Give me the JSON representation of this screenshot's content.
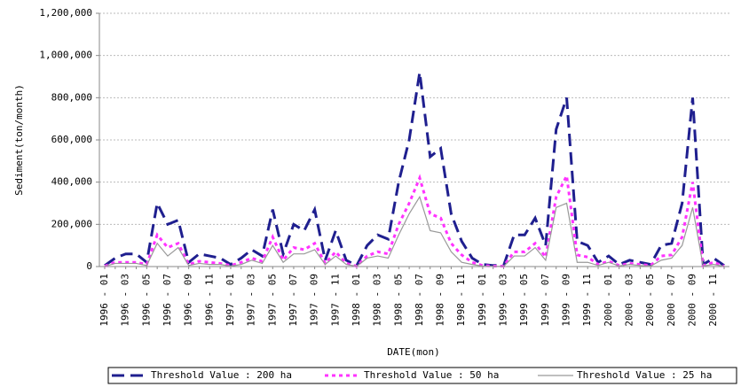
{
  "chart_data": {
    "type": "line",
    "y_label": "Sediment(ton/month)",
    "x_label": "DATE(mon)",
    "categories": [
      "1996 - 01",
      null,
      "1996 - 03",
      null,
      "1996 - 05",
      null,
      "1996 - 07",
      null,
      "1996 - 09",
      null,
      "1996 - 11",
      null,
      "1997 - 01",
      null,
      "1997 - 03",
      null,
      "1997 - 05",
      null,
      "1997 - 07",
      null,
      "1997 - 09",
      null,
      "1997 - 11",
      null,
      "1998 - 01",
      null,
      "1998 - 03",
      null,
      "1998 - 05",
      null,
      "1998 - 07",
      null,
      "1998 - 09",
      null,
      "1998 - 11",
      null,
      "1999 - 01",
      null,
      "1999 - 03",
      null,
      "1999 - 05",
      null,
      "1999 - 07",
      null,
      "1999 - 09",
      null,
      "1999 - 11",
      null,
      "2000 - 01",
      null,
      "2000 - 03",
      null,
      "2000 - 05",
      null,
      "2000 - 07",
      null,
      "2000 - 09",
      null,
      "2000 - 11",
      null
    ],
    "series": [
      {
        "name": "Threshold Value : 200 ha",
        "color": "#1f1f8f",
        "style": "dashed",
        "values": [
          5000,
          40000,
          60000,
          60000,
          20000,
          300000,
          200000,
          220000,
          20000,
          60000,
          50000,
          40000,
          10000,
          40000,
          80000,
          50000,
          270000,
          60000,
          200000,
          170000,
          270000,
          30000,
          170000,
          30000,
          5000,
          100000,
          150000,
          130000,
          400000,
          600000,
          920000,
          520000,
          560000,
          250000,
          120000,
          40000,
          10000,
          5000,
          5000,
          150000,
          150000,
          230000,
          100000,
          650000,
          800000,
          120000,
          100000,
          20000,
          50000,
          10000,
          30000,
          20000,
          10000,
          100000,
          110000,
          300000,
          800000,
          10000,
          40000,
          5000
        ]
      },
      {
        "name": "Threshold Value : 50 ha",
        "color": "#ff33ff",
        "style": "dotted",
        "values": [
          2000,
          20000,
          20000,
          20000,
          10000,
          150000,
          90000,
          110000,
          10000,
          25000,
          20000,
          15000,
          5000,
          20000,
          40000,
          25000,
          140000,
          30000,
          90000,
          80000,
          110000,
          15000,
          70000,
          15000,
          2000,
          50000,
          70000,
          60000,
          200000,
          300000,
          420000,
          250000,
          230000,
          110000,
          55000,
          20000,
          5000,
          2000,
          2000,
          70000,
          70000,
          110000,
          45000,
          330000,
          430000,
          55000,
          45000,
          10000,
          25000,
          5000,
          15000,
          10000,
          5000,
          50000,
          55000,
          140000,
          400000,
          5000,
          20000,
          2000
        ]
      },
      {
        "name": "Threshold Value : 25 ha",
        "color": "#999999",
        "style": "solid",
        "values": [
          1000,
          15000,
          15000,
          15000,
          5000,
          110000,
          50000,
          90000,
          5000,
          15000,
          10000,
          10000,
          2000,
          10000,
          30000,
          15000,
          100000,
          20000,
          60000,
          60000,
          80000,
          10000,
          50000,
          10000,
          1000,
          40000,
          50000,
          40000,
          150000,
          250000,
          330000,
          170000,
          160000,
          70000,
          20000,
          10000,
          2000,
          1000,
          1000,
          50000,
          50000,
          90000,
          30000,
          280000,
          300000,
          20000,
          20000,
          5000,
          20000,
          3000,
          10000,
          5000,
          2000,
          30000,
          40000,
          100000,
          280000,
          3000,
          10000,
          1000
        ]
      }
    ],
    "ylim": [
      0,
      1200000
    ],
    "yticks": [
      0,
      {
        "value": 200000,
        "label": "200,000"
      },
      {
        "value": 400000,
        "label": "400,000"
      },
      {
        "value": 600000,
        "label": "600,000"
      },
      {
        "value": 800000,
        "label": "800,000"
      },
      {
        "value": 1000000,
        "label": "1,000,000"
      },
      {
        "value": 1200000,
        "label": "1,200,000"
      }
    ],
    "grid": true,
    "legend": "bottom"
  }
}
